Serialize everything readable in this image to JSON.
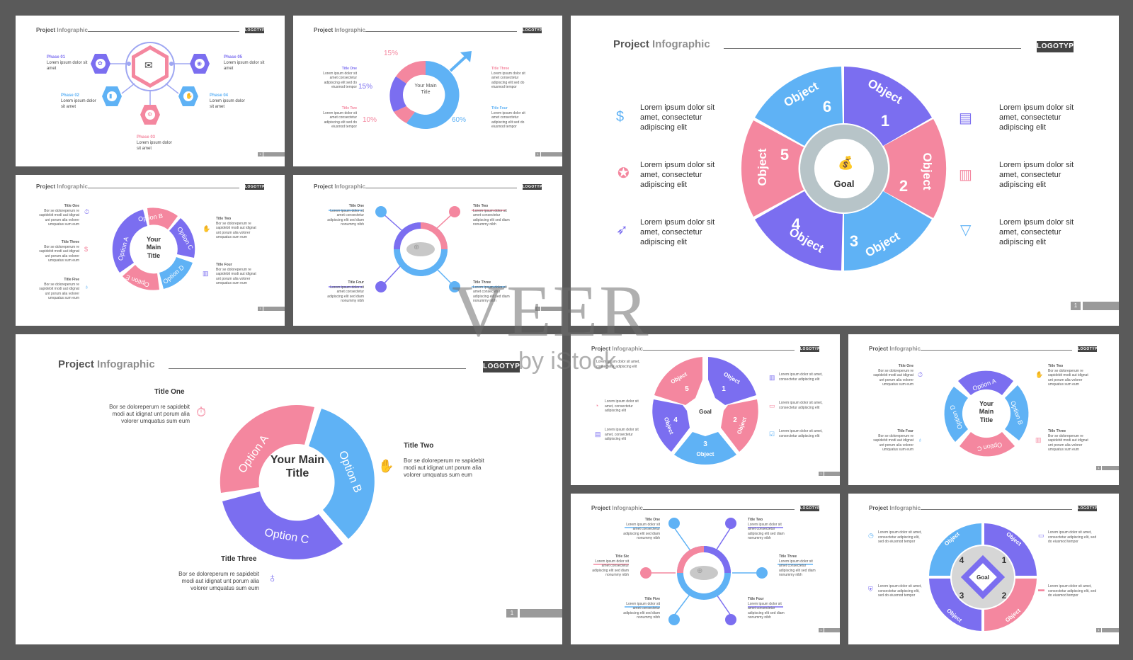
{
  "header": {
    "title": "Project",
    "accent": "Infographic",
    "logo": "LOGOTYPE"
  },
  "page_number": "1",
  "colors": {
    "pink": "#f4879f",
    "blue": "#5fb2f5",
    "purple": "#7b6ef0",
    "gray": "#b7c4c8",
    "dark": "#444444"
  },
  "watermark": {
    "main": "VEER",
    "sub": "by iStock"
  },
  "slide1": {
    "phases": [
      {
        "title": "Phase 01",
        "text": "Lorem ipsum dolor sit amet",
        "icon": "brain-icon"
      },
      {
        "title": "Phase 02",
        "text": "Lorem ipsum dolor sit amet",
        "icon": "hand-phone-icon"
      },
      {
        "title": "Phase 03",
        "text": "Lorem ipsum dolor sit amet",
        "icon": "gear-icon"
      },
      {
        "title": "Phase 04",
        "text": "Lorem ipsum dolor sit amet",
        "icon": "handshake-icon"
      },
      {
        "title": "Phase 05",
        "text": "Lorem ipsum dolor sit amet",
        "icon": "bag-icon"
      }
    ],
    "center_icon": "mail-box-icon"
  },
  "slide2": {
    "center": "Your Main Title",
    "percents": [
      "15%",
      "15%",
      "10%",
      "60%"
    ],
    "titles": [
      "Title One",
      "Title Two",
      "Title Three",
      "Title Four"
    ],
    "text": "Lorem ipsum dolor sit amet consectetur adipiscing elit sed do eiusmod tempor"
  },
  "slide3": {
    "center": "Your Main Title",
    "options": [
      "Option A",
      "Option B",
      "Option C",
      "Option D",
      "Option E"
    ],
    "titles": [
      "Title One",
      "Title Two",
      "Title Three",
      "Title Four",
      "Title Five"
    ],
    "text": "Bor se doloreperum re sapidebit modi aut idignat unt porum alia volorer umquatus sum eum"
  },
  "slide4": {
    "titles": [
      "Title One",
      "Title Two",
      "Title Three",
      "Title Four"
    ],
    "text": "Lorem ipsum dolor sit amet consectetur adipiscing elit sed diam nonummy nibh"
  },
  "slide5": {
    "center": "Goal",
    "segments": [
      {
        "label": "Object",
        "num": "1"
      },
      {
        "label": "Object",
        "num": "2"
      },
      {
        "label": "Object",
        "num": "3"
      },
      {
        "label": "Object",
        "num": "4"
      },
      {
        "label": "Object",
        "num": "5"
      },
      {
        "label": "Object",
        "num": "6"
      }
    ],
    "text": "Lorem ipsum dolor sit amet, consectetur adipiscing elit"
  },
  "slide6": {
    "center": "Your Main Title",
    "options": [
      "Option A",
      "Option B",
      "Option C"
    ],
    "items": [
      {
        "title": "Title One",
        "text": "Bor se doloreperum re sapidebit modi aut idignat unt porum alia volorer umquatus sum eum"
      },
      {
        "title": "Title Two",
        "text": "Bor se doloreperum re sapidebit modi aut idignat unt porum alia volorer umquatus sum eum"
      },
      {
        "title": "Title Three",
        "text": "Bor se doloreperum re sapidebit modi aut idignat unt porum alia volorer umquatus sum eum"
      }
    ]
  },
  "slide7": {
    "center": "Goal",
    "segments": [
      {
        "label": "Object",
        "num": "1"
      },
      {
        "label": "Object",
        "num": "2"
      },
      {
        "label": "Object",
        "num": "3"
      },
      {
        "label": "Object",
        "num": "4"
      },
      {
        "label": "Object",
        "num": "5"
      }
    ],
    "text": "Lorem ipsum dolor sit amet, consectetur adipiscing elit"
  },
  "slide8": {
    "center": "Your Main Title",
    "options": [
      "Option A",
      "Option B",
      "Option C",
      "Option D"
    ],
    "titles": [
      "Title One",
      "Title Two",
      "Title Three",
      "Title Four"
    ],
    "text": "Bor se doloreperum re sapidebit modi aut idignat unt porum alia volorer umquatus sum eum"
  },
  "slide9": {
    "titles": [
      "Title One",
      "Title Two",
      "Title Three",
      "Title Four",
      "Title Five",
      "Title Six"
    ],
    "text": "Lorem ipsum dolor sit amet consectetur adipiscing elit sed diam nonummy nibh"
  },
  "slide10": {
    "center": "Goal",
    "segments": [
      {
        "label": "Object",
        "num": "1"
      },
      {
        "label": "Object",
        "num": "2"
      },
      {
        "label": "Object",
        "num": "3"
      },
      {
        "label": "Object",
        "num": "4"
      }
    ],
    "text": "Lorem ipsum dolor sit amet, consectetur adipiscing elit, sed do eiusmod tempor"
  }
}
